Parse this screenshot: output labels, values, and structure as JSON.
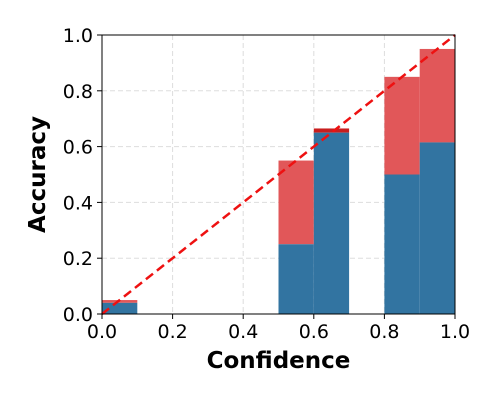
{
  "chart_data": {
    "type": "bar",
    "title": "",
    "xlabel": "Confidence",
    "ylabel": "Accuracy",
    "xlim": [
      0.0,
      1.0
    ],
    "ylim": [
      0.0,
      1.0
    ],
    "grid": true,
    "xticks": [
      "0.0",
      "0.2",
      "0.4",
      "0.6",
      "0.8",
      "1.0"
    ],
    "yticks": [
      "0.0",
      "0.2",
      "0.4",
      "0.6",
      "0.8",
      "1.0"
    ],
    "bin_width": 0.1,
    "bins": [
      {
        "x": 0.0,
        "accuracy": 0.04,
        "confidence": 0.05
      },
      {
        "x": 0.5,
        "accuracy": 0.25,
        "confidence": 0.55
      },
      {
        "x": 0.6,
        "accuracy": 0.65,
        "confidence": 0.665
      },
      {
        "x": 0.8,
        "accuracy": 0.5,
        "confidence": 0.85
      },
      {
        "x": 0.9,
        "accuracy": 0.615,
        "confidence": 0.95
      }
    ],
    "diagonal": [
      [
        0,
        0
      ],
      [
        1,
        1
      ]
    ],
    "colors": {
      "accuracy": "#3274a1",
      "gap": "#e15759",
      "gap_dark": "#c81e1e",
      "diagonal": "#ee1111",
      "grid": "#dddddd"
    }
  }
}
